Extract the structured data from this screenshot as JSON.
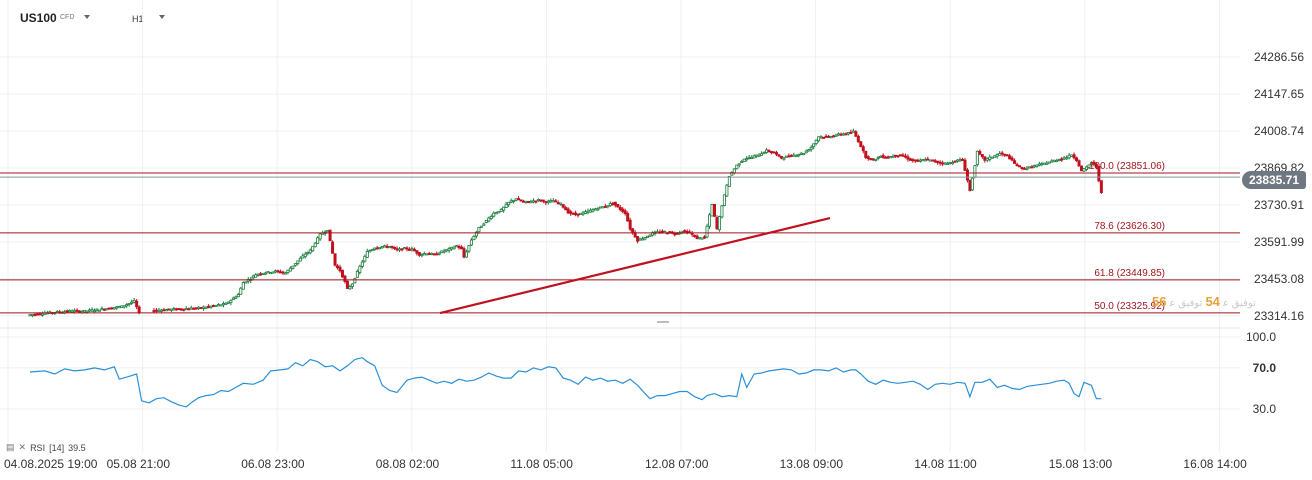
{
  "header": {
    "symbol": "US100",
    "instrument_type": "CFD",
    "timeframe": "H1"
  },
  "price_axis_labels": [
    "24286.56",
    "24147.65",
    "24008.74",
    "23869.82",
    "23730.91",
    "23591.99",
    "23453.08",
    "23314.16"
  ],
  "current_price_label": "23835.71",
  "rsi_axis_labels": [
    "100.0",
    "70.0",
    "30.0"
  ],
  "rsi_legend": {
    "name": "RSI",
    "period": "[14]",
    "value": "39.5"
  },
  "time_axis_labels": [
    "04.08.2025  19:00",
    "05.08  21:00",
    "06.08  23:00",
    "08.08  02:00",
    "11.08  05:00",
    "12.08  07:00",
    "13.08  09:00",
    "14.08  11:00",
    "15.08  13:00",
    "16.08  14:00"
  ],
  "overlay_text": {
    "a": "56",
    "b": "ﺗﻮﻓﻴﻖ ﻋ",
    "c": "54",
    "d": "ﺗﻮﻓﻴﻖ ﻋ"
  },
  "colors": {
    "bull": "#1a7d3b",
    "bear": "#c0111f",
    "fib": "#a3151b",
    "trend": "#c0111f",
    "rsi": "#2b8fd6",
    "grid": "#eef0f3"
  },
  "chart_data": {
    "type": "candlestick",
    "symbol": "US100",
    "timeframe": "H1",
    "price_axis": {
      "ylim": [
        23295,
        24330
      ],
      "ticks": [
        24286.56,
        24147.65,
        24008.74,
        23869.82,
        23730.91,
        23591.99,
        23453.08,
        23314.16
      ]
    },
    "current_price": 23835.71,
    "fibonacci_levels": [
      {
        "label": "100.0 (23851.06)",
        "value": 23851.06
      },
      {
        "label": "78.6 (23626.30)",
        "value": 23626.3
      },
      {
        "label": "61.8 (23449.85)",
        "value": 23449.85
      },
      {
        "label": "50.0 (23325.92)",
        "value": 23325.92
      }
    ],
    "trendline": {
      "from": {
        "x": "08.08 01:00",
        "y": 23325
      },
      "to": {
        "x": "13.08 06:00",
        "y": 23682
      }
    },
    "candles_close_path": [
      [
        0,
        23318
      ],
      [
        10,
        23328
      ],
      [
        14,
        23330
      ],
      [
        18,
        23334
      ],
      [
        22,
        23331
      ],
      [
        26,
        23336
      ],
      [
        30,
        23340
      ],
      [
        38,
        23350
      ],
      [
        43,
        23370
      ],
      [
        45,
        23326
      ],
      [
        50,
        23335
      ],
      [
        60,
        23340
      ],
      [
        70,
        23345
      ],
      [
        80,
        23360
      ],
      [
        85,
        23395
      ],
      [
        87,
        23440
      ],
      [
        90,
        23455
      ],
      [
        92,
        23470
      ],
      [
        95,
        23476
      ],
      [
        100,
        23482
      ],
      [
        104,
        23476
      ],
      [
        108,
        23512
      ],
      [
        112,
        23547
      ],
      [
        114,
        23560
      ],
      [
        118,
        23620
      ],
      [
        121,
        23638
      ],
      [
        124,
        23505
      ],
      [
        126,
        23485
      ],
      [
        128,
        23442
      ],
      [
        129,
        23415
      ],
      [
        131,
        23436
      ],
      [
        134,
        23500
      ],
      [
        137,
        23555
      ],
      [
        140,
        23571
      ],
      [
        143,
        23575
      ],
      [
        146,
        23575
      ],
      [
        149,
        23562
      ],
      [
        152,
        23568
      ],
      [
        155,
        23565
      ],
      [
        158,
        23545
      ],
      [
        161,
        23550
      ],
      [
        164,
        23545
      ],
      [
        167,
        23556
      ],
      [
        170,
        23565
      ],
      [
        173,
        23578
      ],
      [
        175,
        23565
      ],
      [
        176,
        23535
      ],
      [
        179,
        23600
      ],
      [
        182,
        23644
      ],
      [
        185,
        23672
      ],
      [
        188,
        23700
      ],
      [
        191,
        23712
      ],
      [
        194,
        23740
      ],
      [
        197,
        23755
      ],
      [
        200,
        23741
      ],
      [
        203,
        23745
      ],
      [
        206,
        23750
      ],
      [
        209,
        23742
      ],
      [
        212,
        23747
      ],
      [
        215,
        23735
      ],
      [
        218,
        23703
      ],
      [
        221,
        23695
      ],
      [
        224,
        23700
      ],
      [
        227,
        23710
      ],
      [
        230,
        23720
      ],
      [
        233,
        23726
      ],
      [
        236,
        23739
      ],
      [
        238,
        23722
      ],
      [
        241,
        23701
      ],
      [
        243,
        23642
      ],
      [
        246,
        23598
      ],
      [
        249,
        23610
      ],
      [
        252,
        23625
      ],
      [
        255,
        23630
      ],
      [
        258,
        23629
      ],
      [
        261,
        23624
      ],
      [
        264,
        23632
      ],
      [
        267,
        23626
      ],
      [
        270,
        23606
      ],
      [
        273,
        23610
      ],
      [
        276,
        23732
      ],
      [
        278,
        23641
      ],
      [
        280,
        23730
      ],
      [
        283,
        23840
      ],
      [
        286,
        23880
      ],
      [
        289,
        23905
      ],
      [
        292,
        23910
      ],
      [
        295,
        23920
      ],
      [
        298,
        23935
      ],
      [
        301,
        23926
      ],
      [
        304,
        23908
      ],
      [
        307,
        23915
      ],
      [
        310,
        23920
      ],
      [
        313,
        23926
      ],
      [
        316,
        23948
      ],
      [
        319,
        23988
      ],
      [
        322,
        23986
      ],
      [
        325,
        23992
      ],
      [
        328,
        23997
      ],
      [
        331,
        24001
      ],
      [
        333,
        24007
      ],
      [
        336,
        23952
      ],
      [
        338,
        23912
      ],
      [
        341,
        23900
      ],
      [
        344,
        23914
      ],
      [
        347,
        23910
      ],
      [
        350,
        23918
      ],
      [
        353,
        23915
      ],
      [
        356,
        23900
      ],
      [
        359,
        23895
      ],
      [
        362,
        23903
      ],
      [
        365,
        23896
      ],
      [
        368,
        23889
      ],
      [
        371,
        23887
      ],
      [
        374,
        23896
      ],
      [
        377,
        23902
      ],
      [
        380,
        23785
      ],
      [
        383,
        23930
      ],
      [
        386,
        23900
      ],
      [
        389,
        23912
      ],
      [
        392,
        23924
      ],
      [
        395,
        23917
      ],
      [
        398,
        23886
      ],
      [
        401,
        23868
      ],
      [
        404,
        23872
      ],
      [
        407,
        23880
      ],
      [
        410,
        23887
      ],
      [
        413,
        23895
      ],
      [
        416,
        23903
      ],
      [
        419,
        23910
      ],
      [
        421,
        23920
      ],
      [
        423,
        23900
      ],
      [
        425,
        23858
      ],
      [
        427,
        23872
      ],
      [
        429,
        23890
      ],
      [
        431,
        23874
      ],
      [
        433,
        23775
      ]
    ],
    "candle_x_units": "bars since 04.08.2025 19:00 (1 bar = 1 hour)",
    "rsi": {
      "period": 14,
      "last": 39.5,
      "ylim": [
        0,
        100
      ],
      "ticks": [
        100,
        70,
        30
      ],
      "values": [
        [
          0,
          66
        ],
        [
          6,
          67
        ],
        [
          10,
          64
        ],
        [
          14,
          69
        ],
        [
          18,
          67
        ],
        [
          22,
          68
        ],
        [
          26,
          70
        ],
        [
          30,
          68
        ],
        [
          34,
          71
        ],
        [
          36,
          59
        ],
        [
          39,
          61
        ],
        [
          43,
          64
        ],
        [
          45,
          38
        ],
        [
          48,
          36
        ],
        [
          51,
          40
        ],
        [
          54,
          41
        ],
        [
          57,
          37
        ],
        [
          60,
          34
        ],
        [
          63,
          32
        ],
        [
          65,
          36
        ],
        [
          68,
          41
        ],
        [
          71,
          43
        ],
        [
          74,
          44
        ],
        [
          77,
          48
        ],
        [
          80,
          47
        ],
        [
          83,
          51
        ],
        [
          86,
          55
        ],
        [
          90,
          54
        ],
        [
          94,
          58
        ],
        [
          97,
          67
        ],
        [
          101,
          68
        ],
        [
          104,
          69
        ],
        [
          107,
          75
        ],
        [
          110,
          72
        ],
        [
          113,
          78
        ],
        [
          116,
          76
        ],
        [
          119,
          71
        ],
        [
          122,
          72
        ],
        [
          125,
          67
        ],
        [
          128,
          72
        ],
        [
          131,
          78
        ],
        [
          134,
          80
        ],
        [
          136,
          76
        ],
        [
          139,
          72
        ],
        [
          142,
          53
        ],
        [
          145,
          48
        ],
        [
          148,
          46
        ],
        [
          152,
          58
        ],
        [
          155,
          60
        ],
        [
          158,
          61
        ],
        [
          161,
          58
        ],
        [
          164,
          55
        ],
        [
          167,
          57
        ],
        [
          170,
          55
        ],
        [
          173,
          59
        ],
        [
          176,
          57
        ],
        [
          179,
          58
        ],
        [
          182,
          61
        ],
        [
          185,
          65
        ],
        [
          188,
          62
        ],
        [
          191,
          60
        ],
        [
          194,
          60
        ],
        [
          197,
          67
        ],
        [
          200,
          66
        ],
        [
          203,
          70
        ],
        [
          206,
          68
        ],
        [
          209,
          71
        ],
        [
          212,
          70
        ],
        [
          215,
          60
        ],
        [
          218,
          58
        ],
        [
          221,
          54
        ],
        [
          224,
          61
        ],
        [
          227,
          58
        ],
        [
          230,
          60
        ],
        [
          233,
          57
        ],
        [
          236,
          58
        ],
        [
          239,
          55
        ],
        [
          242,
          59
        ],
        [
          245,
          53
        ],
        [
          248,
          45
        ],
        [
          250,
          40
        ],
        [
          253,
          43
        ],
        [
          256,
          43
        ],
        [
          259,
          45
        ],
        [
          262,
          47
        ],
        [
          265,
          47
        ],
        [
          268,
          42
        ],
        [
          271,
          39
        ],
        [
          273,
          43
        ],
        [
          276,
          45
        ],
        [
          279,
          42
        ],
        [
          282,
          43
        ],
        [
          285,
          42
        ],
        [
          287,
          64
        ],
        [
          289,
          51
        ],
        [
          292,
          64
        ],
        [
          295,
          65
        ],
        [
          298,
          67
        ],
        [
          301,
          68
        ],
        [
          304,
          69
        ],
        [
          307,
          68
        ],
        [
          310,
          64
        ],
        [
          313,
          65
        ],
        [
          316,
          68
        ],
        [
          319,
          68
        ],
        [
          322,
          67
        ],
        [
          325,
          70
        ],
        [
          328,
          66
        ],
        [
          331,
          68
        ],
        [
          333,
          68
        ],
        [
          335,
          64
        ],
        [
          338,
          57
        ],
        [
          341,
          54
        ],
        [
          344,
          58
        ],
        [
          347,
          56
        ],
        [
          350,
          55
        ],
        [
          353,
          56
        ],
        [
          356,
          57
        ],
        [
          359,
          54
        ],
        [
          362,
          49
        ],
        [
          365,
          54
        ],
        [
          368,
          55
        ],
        [
          371,
          54
        ],
        [
          374,
          56
        ],
        [
          377,
          55
        ],
        [
          379,
          42
        ],
        [
          381,
          56
        ],
        [
          384,
          56
        ],
        [
          387,
          59
        ],
        [
          390,
          51
        ],
        [
          393,
          53
        ],
        [
          396,
          50
        ],
        [
          399,
          49
        ],
        [
          402,
          52
        ],
        [
          405,
          53
        ],
        [
          408,
          54
        ],
        [
          411,
          55
        ],
        [
          414,
          57
        ],
        [
          417,
          58
        ],
        [
          419,
          55
        ],
        [
          421,
          45
        ],
        [
          423,
          42
        ],
        [
          425,
          56
        ],
        [
          428,
          53
        ],
        [
          430,
          40
        ],
        [
          432,
          40
        ]
      ]
    }
  }
}
